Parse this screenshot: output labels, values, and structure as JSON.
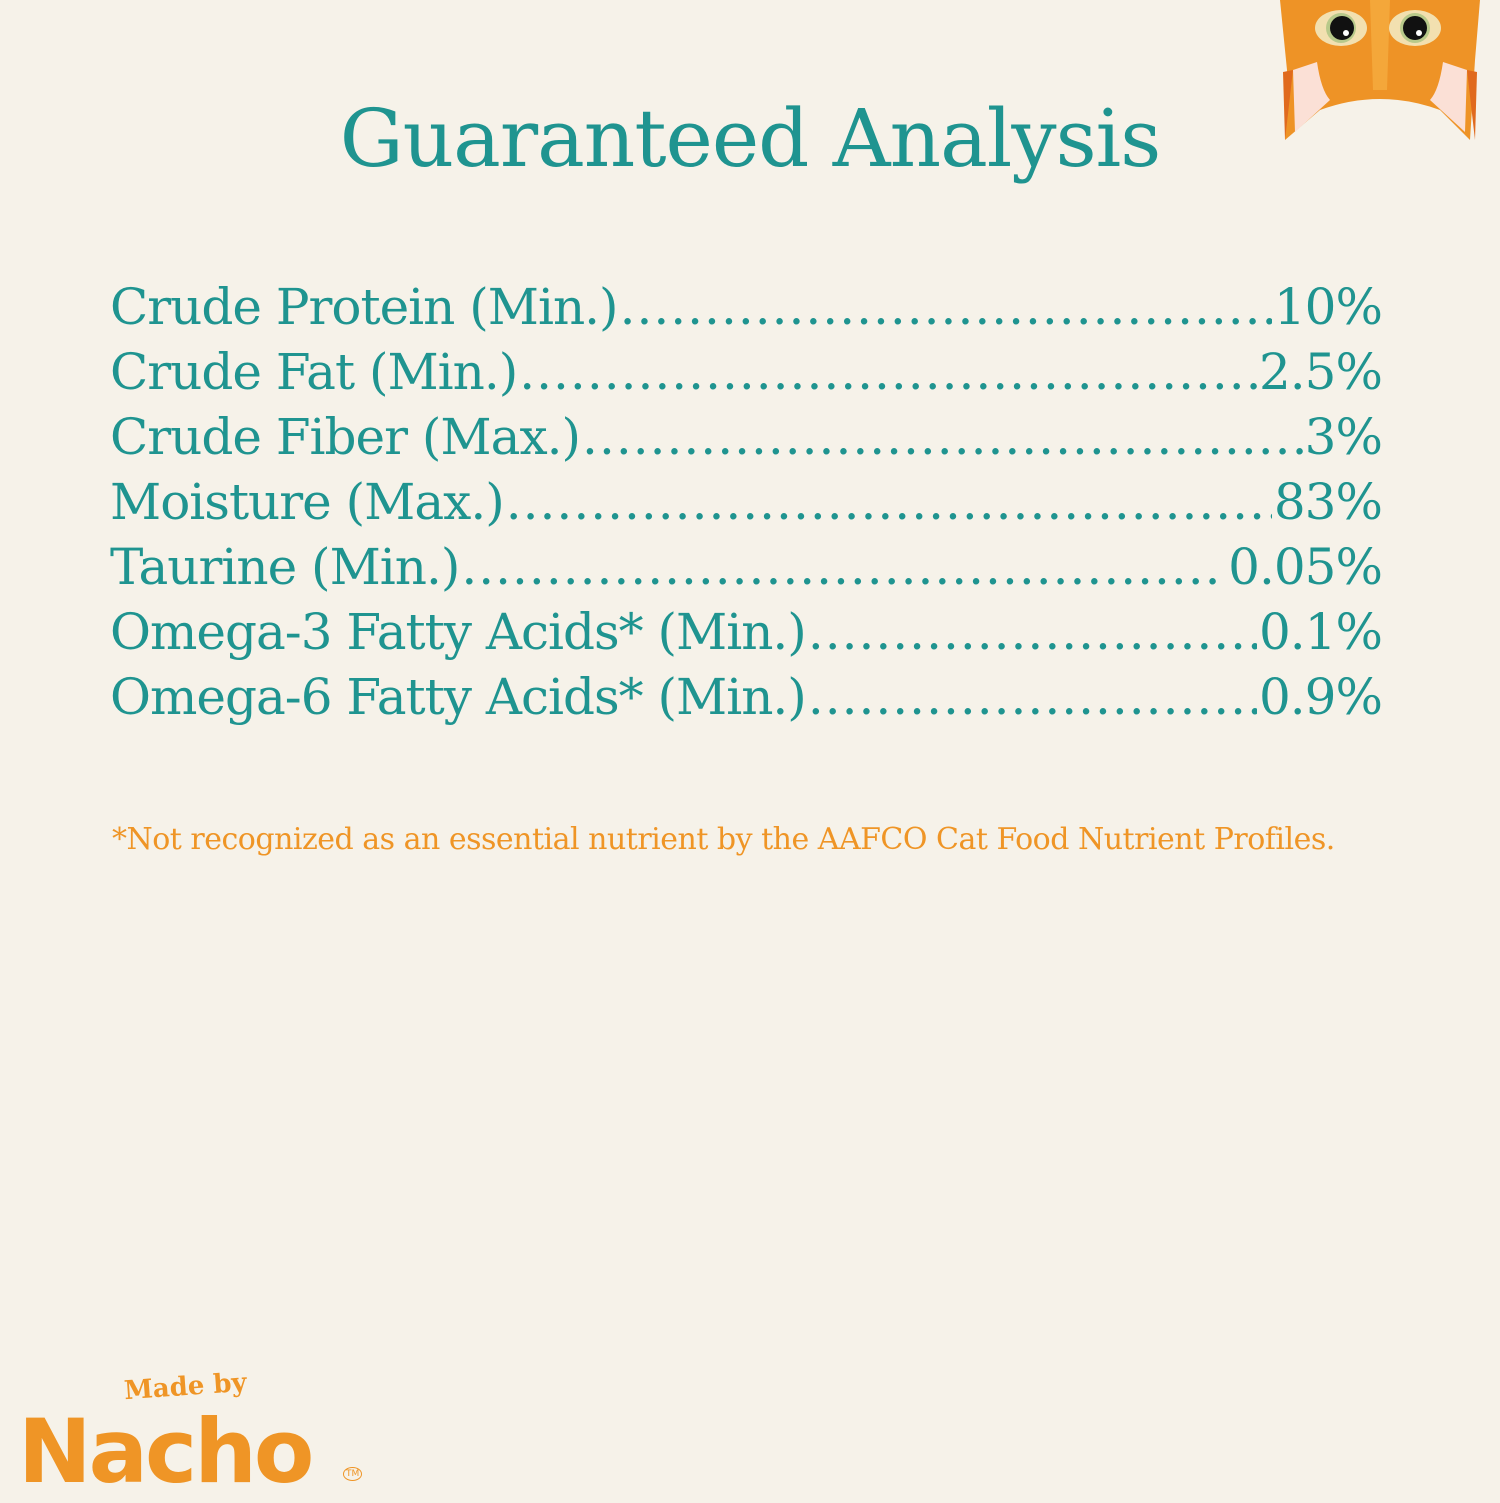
{
  "title": "Guaranteed Analysis",
  "analysis": [
    {
      "label": "Crude Protein (Min.)",
      "value": "10%"
    },
    {
      "label": "Crude Fat (Min.)",
      "value": "2.5%"
    },
    {
      "label": "Crude Fiber (Max.)",
      "value": "3%"
    },
    {
      "label": "Moisture (Max.)",
      "value": "83%"
    },
    {
      "label": "Taurine (Min.)",
      "value": "0.05%"
    },
    {
      "label": "Omega-3 Fatty Acids* (Min.)",
      "value": "0.1%"
    },
    {
      "label": "Omega-6 Fatty Acids* (Min.)",
      "value": "0.9%"
    }
  ],
  "footnote": "*Not recognized as an essential nutrient by the AAFCO Cat Food Nutrient Profiles.",
  "logo": {
    "tagline": "Made by",
    "brand": "Nacho",
    "trademark": "TM"
  },
  "colors": {
    "background": "#f6f2e9",
    "teal": "#1f9490",
    "orange": "#ef9526"
  },
  "decoration": "cat-face-illustration"
}
